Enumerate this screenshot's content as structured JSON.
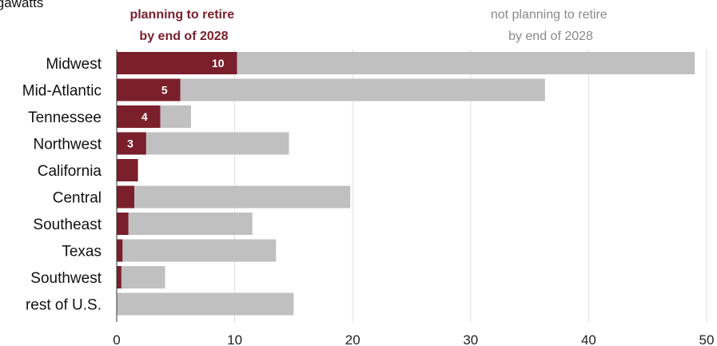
{
  "chart_data": {
    "type": "bar",
    "orientation": "horizontal",
    "stacked": true,
    "unit_label": "igawatts",
    "categories": [
      "Midwest",
      "Mid-Atlantic",
      "Tennessee",
      "Northwest",
      "California",
      "Central",
      "Southeast",
      "Texas",
      "Southwest",
      "rest of U.S."
    ],
    "series": [
      {
        "name_lines": [
          "planning to retire",
          "by end of 2028"
        ],
        "color": "#7a1f2b",
        "values": [
          10.2,
          5.4,
          3.7,
          2.5,
          1.8,
          1.5,
          1.0,
          0.5,
          0.4,
          0.0
        ],
        "data_labels": [
          "10",
          "5",
          "4",
          "3",
          "",
          "",
          "",
          "",
          "",
          ""
        ]
      },
      {
        "name_lines": [
          "not planning to retire",
          "by end of 2028"
        ],
        "color": "#c0c0c0",
        "values": [
          38.8,
          30.9,
          2.6,
          12.1,
          0.0,
          18.3,
          10.5,
          13.0,
          3.7,
          15.0
        ]
      }
    ],
    "xlim": [
      0,
      50
    ],
    "xticks": [
      0,
      10,
      20,
      30,
      40,
      50
    ],
    "grid": true
  }
}
